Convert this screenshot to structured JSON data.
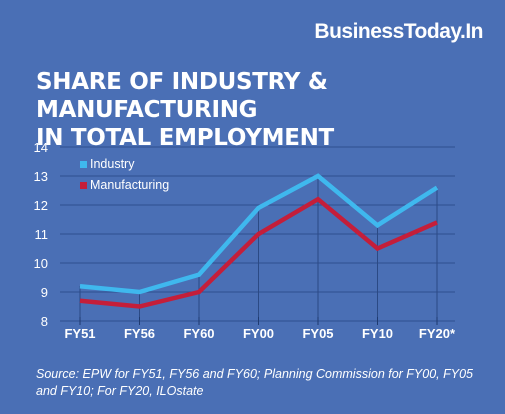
{
  "brand": "BusinessToday.In",
  "title_lines": [
    "SHARE OF INDUSTRY & MANUFACTURING",
    "IN TOTAL EMPLOYMENT"
  ],
  "source": "Source: EPW for FY51, FY56 and FY60; Planning Commission for FY00, FY05 and FY10; For FY20, ILOstate",
  "colors": {
    "background": "#4a6fb5",
    "industry": "#3fb8ee",
    "manufacturing": "#c41e3a"
  },
  "chart_data": {
    "type": "line",
    "title": "SHARE OF INDUSTRY & MANUFACTURING IN TOTAL EMPLOYMENT",
    "xlabel": "",
    "ylabel": "",
    "categories": [
      "FY51",
      "FY56",
      "FY60",
      "FY00",
      "FY05",
      "FY10",
      "FY20*"
    ],
    "series": [
      {
        "name": "Industry",
        "values": [
          9.2,
          9.0,
          9.6,
          11.9,
          13.0,
          11.3,
          12.6
        ]
      },
      {
        "name": "Manufacturing",
        "values": [
          8.7,
          8.5,
          9.0,
          11.0,
          12.2,
          10.5,
          11.4
        ]
      }
    ],
    "ylim": [
      8,
      14
    ],
    "yticks": [
      8,
      9,
      10,
      11,
      12,
      13,
      14
    ],
    "grid": true,
    "legend": "top-left"
  }
}
